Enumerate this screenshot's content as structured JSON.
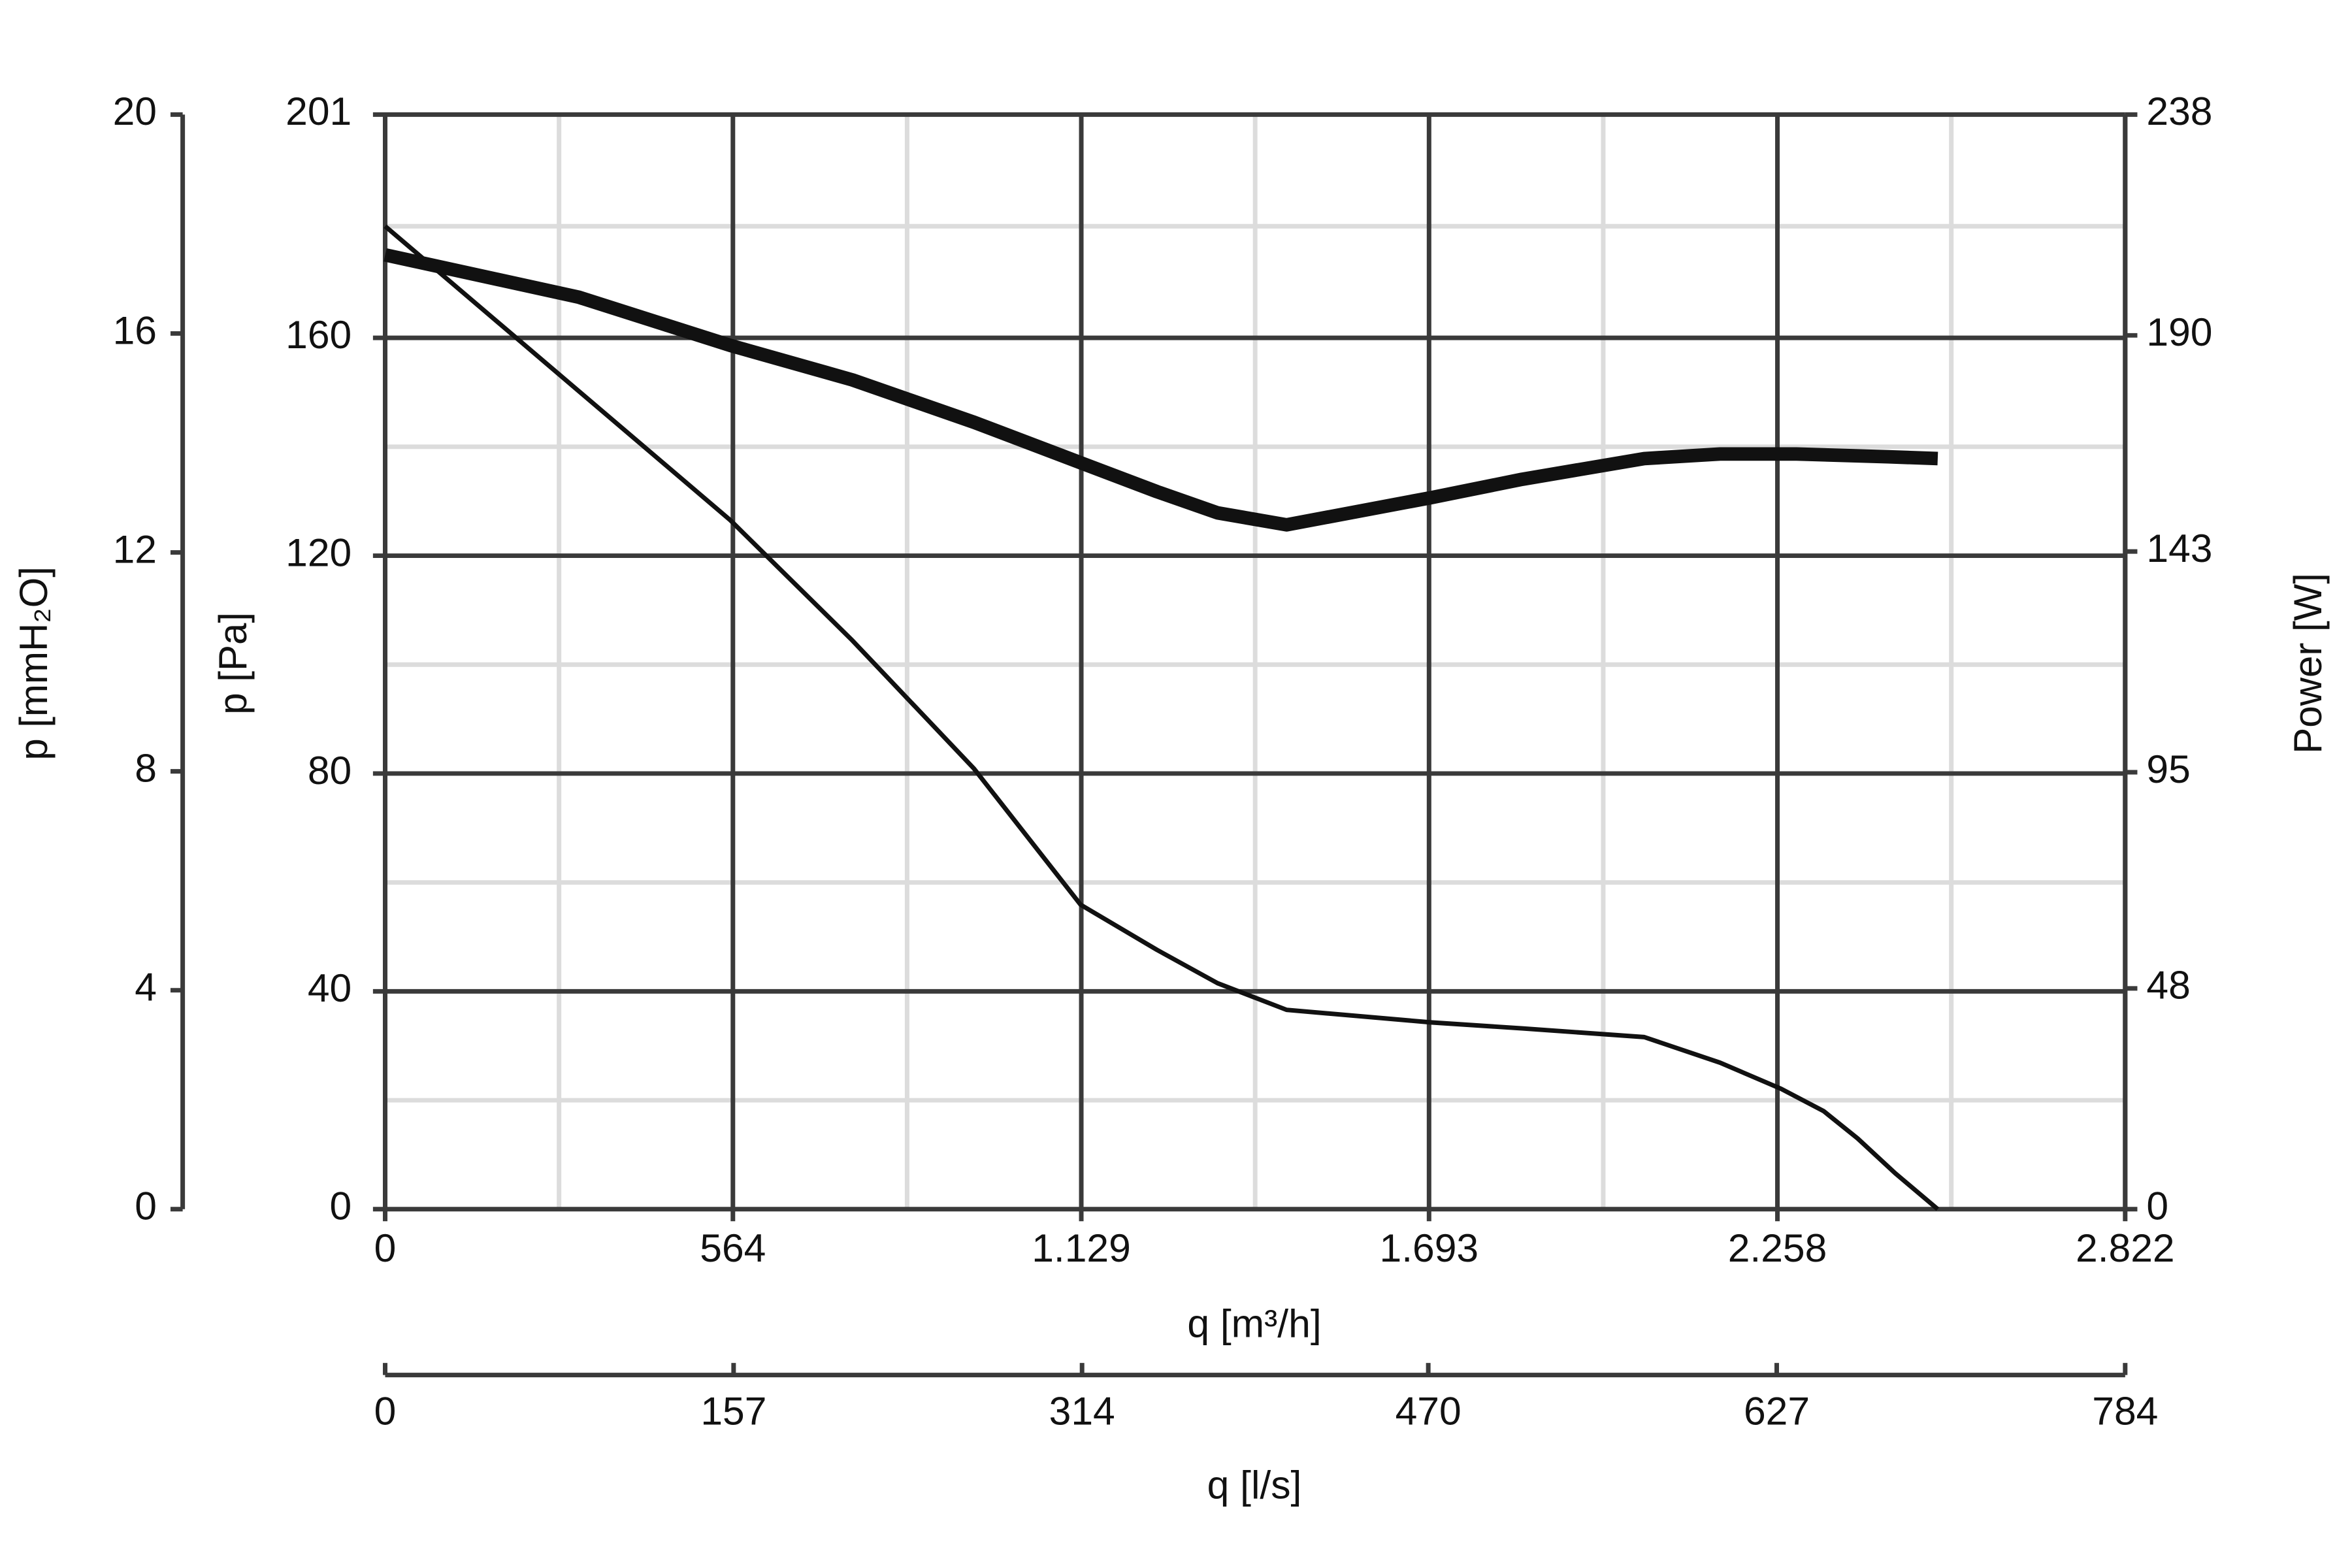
{
  "chart_data": {
    "type": "line",
    "xlabel": "q [m³/h]",
    "ylabel": "p [Pa]",
    "y2label": "Power [W]",
    "y3label": "p [mmH₂O]",
    "x2label": "q [l/s]",
    "xlim": [
      0,
      2822
    ],
    "xticks": [
      0,
      564,
      {
        "value": 1129,
        "label": "1.129"
      },
      {
        "value": 1693,
        "label": "1.693"
      },
      {
        "value": 2258,
        "label": "2.258"
      },
      {
        "value": 2822,
        "label": "2.822"
      }
    ],
    "x2lim": [
      0,
      784
    ],
    "x2ticks": [
      0,
      157,
      314,
      470,
      627,
      784
    ],
    "ylim": [
      0,
      201
    ],
    "yticks": [
      0,
      40,
      80,
      120,
      160,
      201
    ],
    "y2lim": [
      0,
      238
    ],
    "y2ticks": [
      0,
      48,
      95,
      143,
      190,
      238
    ],
    "y3lim": [
      0,
      20
    ],
    "y3ticks": [
      0,
      4,
      8,
      12,
      16,
      20
    ],
    "grid": true,
    "minor_grid": true,
    "series": [
      {
        "color": "#111111",
        "width": 3,
        "x": [
          0,
          560,
          758,
          955,
          1128,
          1252,
          1350,
          1462,
          1696,
          1844,
          2042,
          2165,
          2264,
          2333,
          2388,
          2449,
          2518
        ],
        "values": [
          180.5,
          126.5,
          104.4,
          80.9,
          55.9,
          47.6,
          41.5,
          36.6,
          34.3,
          33.2,
          31.6,
          26.9,
          22.1,
          18.0,
          13.0,
          6.6,
          0
        ]
      },
      {
        "color": "#111111",
        "width": 9,
        "axis": "y2",
        "x": [
          0,
          314,
          560,
          758,
          955,
          1128,
          1252,
          1350,
          1462,
          1696,
          1844,
          2042,
          2165,
          2289,
          2437,
          2518
        ],
        "values": [
          207.5,
          198.3,
          187.8,
          180.3,
          171.1,
          162.3,
          156.0,
          151.4,
          148.8,
          154.7,
          158.7,
          163.2,
          164.2,
          164.2,
          163.6,
          163.2
        ]
      }
    ]
  }
}
